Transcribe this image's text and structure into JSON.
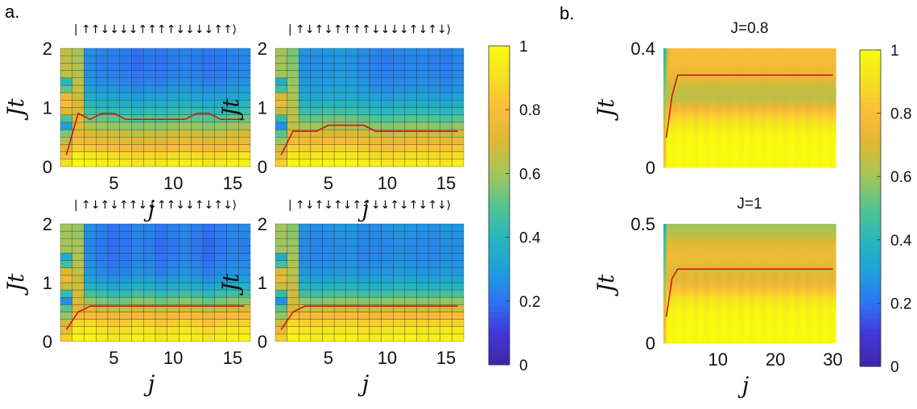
{
  "figure": {
    "panel_a_label": "a.",
    "panel_b_label": "b."
  },
  "colorscale": [
    "#3e26a8",
    "#4435d8",
    "#2e74f4",
    "#1fa0db",
    "#26b7bb",
    "#55c48e",
    "#a1c55c",
    "#dcb932",
    "#fbbb3a",
    "#f3df23",
    "#f9fb0e"
  ],
  "chart_data": [
    {
      "type": "heatmap",
      "panel": "a",
      "title": "| ↑↑↓↓↓↓↑↑↑↑↓↓↓↓↑↑⟩",
      "xlabel": "j",
      "ylabel": "Jt",
      "xlim": [
        0.5,
        16.5
      ],
      "ylim": [
        0,
        2
      ],
      "xticks": [
        5,
        10,
        15
      ],
      "yticks": [
        0,
        1,
        2
      ],
      "x_cells": 16,
      "y_cells": 16,
      "z_base": [
        1.0,
        0.95,
        0.85,
        0.78,
        0.72,
        0.64,
        0.56,
        0.48,
        0.42,
        0.37,
        0.33,
        0.3,
        0.28,
        0.27,
        0.27,
        0.28
      ],
      "z_dips": [
        0,
        0,
        0.02,
        0.04,
        0.05,
        0.06,
        0.08,
        0.06,
        0.07,
        0.05,
        0.04,
        0.05,
        0.07,
        0.06,
        0.04,
        0.03
      ],
      "column1_value": 0.55,
      "column2_value": 0.78,
      "red_line": {
        "x": [
          1,
          2,
          3,
          4,
          5,
          6,
          7,
          8,
          9,
          10,
          11,
          12,
          13,
          14,
          15,
          16
        ],
        "y": [
          0.2,
          0.9,
          0.8,
          0.9,
          0.9,
          0.8,
          0.8,
          0.8,
          0.8,
          0.8,
          0.8,
          0.9,
          0.9,
          0.8,
          0.8,
          0.8
        ]
      }
    },
    {
      "type": "heatmap",
      "panel": "a",
      "title": "| ↑↓↑↓↑↑↑↑↓↓↓↓↑↓↑↓⟩",
      "xlabel": "j",
      "ylabel": "Jt",
      "xlim": [
        0.5,
        16.5
      ],
      "ylim": [
        0,
        2
      ],
      "xticks": [
        5,
        10,
        15
      ],
      "yticks": [
        0,
        1,
        2
      ],
      "x_cells": 16,
      "y_cells": 16,
      "z_base": [
        1.0,
        0.95,
        0.88,
        0.8,
        0.72,
        0.63,
        0.55,
        0.47,
        0.41,
        0.36,
        0.33,
        0.31,
        0.3,
        0.29,
        0.29,
        0.3
      ],
      "z_dips": [
        0,
        0.02,
        0.03,
        0.03,
        0.02,
        0.01,
        0.02,
        0.04,
        0.06,
        0.07,
        0.06,
        0.05,
        0.05,
        0.06,
        0.07,
        0.05
      ],
      "column1_value": 0.5,
      "column2_value": 0.72,
      "red_line": {
        "x": [
          1,
          2,
          3,
          4,
          5,
          6,
          7,
          8,
          9,
          10,
          11,
          12,
          13,
          14,
          15,
          16
        ],
        "y": [
          0.2,
          0.6,
          0.6,
          0.6,
          0.7,
          0.7,
          0.7,
          0.7,
          0.6,
          0.6,
          0.6,
          0.6,
          0.6,
          0.6,
          0.6,
          0.6
        ]
      }
    },
    {
      "type": "heatmap",
      "panel": "a",
      "title": "| ↑↓↑↓↑↑↓↓↑↑↓↓↑↓↑↓⟩",
      "xlabel": "j",
      "ylabel": "Jt",
      "xlim": [
        0.5,
        16.5
      ],
      "ylim": [
        0,
        2
      ],
      "xticks": [
        5,
        10,
        15
      ],
      "yticks": [
        0,
        1,
        2
      ],
      "x_cells": 16,
      "y_cells": 16,
      "z_base": [
        1.0,
        0.96,
        0.9,
        0.82,
        0.72,
        0.6,
        0.49,
        0.4,
        0.34,
        0.3,
        0.28,
        0.27,
        0.26,
        0.26,
        0.27,
        0.28
      ],
      "z_dips": [
        0,
        0.02,
        0.02,
        0.05,
        0.07,
        0.06,
        0.03,
        0.04,
        0.07,
        0.05,
        0.03,
        0.05,
        0.08,
        0.05,
        0.03,
        0.03
      ],
      "column1_value": 0.5,
      "column2_value": 0.76,
      "red_line": {
        "x": [
          1,
          2,
          3,
          4,
          5,
          6,
          7,
          8,
          9,
          10,
          11,
          12,
          13,
          14,
          15,
          16
        ],
        "y": [
          0.2,
          0.5,
          0.6,
          0.6,
          0.6,
          0.6,
          0.6,
          0.6,
          0.6,
          0.6,
          0.6,
          0.6,
          0.6,
          0.6,
          0.6,
          0.6
        ]
      }
    },
    {
      "type": "heatmap",
      "panel": "a",
      "title": "| ↑↓↑↓↑↓↑↑↓↓↑↓↑↓↑↓⟩",
      "xlabel": "j",
      "ylabel": "Jt",
      "xlim": [
        0.5,
        16.5
      ],
      "ylim": [
        0,
        2
      ],
      "xticks": [
        5,
        10,
        15
      ],
      "yticks": [
        0,
        1,
        2
      ],
      "x_cells": 16,
      "y_cells": 16,
      "z_base": [
        1.0,
        0.96,
        0.9,
        0.82,
        0.72,
        0.61,
        0.5,
        0.42,
        0.36,
        0.32,
        0.3,
        0.29,
        0.29,
        0.29,
        0.3,
        0.31
      ],
      "z_dips": [
        0,
        0.02,
        0.04,
        0.05,
        0.04,
        0.03,
        0.03,
        0.05,
        0.05,
        0.04,
        0.03,
        0.03,
        0.04,
        0.04,
        0.03,
        0.03
      ],
      "column1_value": 0.5,
      "column2_value": 0.74,
      "red_line": {
        "x": [
          1,
          2,
          3,
          4,
          5,
          6,
          7,
          8,
          9,
          10,
          11,
          12,
          13,
          14,
          15,
          16
        ],
        "y": [
          0.2,
          0.5,
          0.6,
          0.6,
          0.6,
          0.6,
          0.6,
          0.6,
          0.6,
          0.6,
          0.6,
          0.6,
          0.6,
          0.6,
          0.6,
          0.6
        ]
      }
    },
    {
      "type": "heatmap",
      "panel": "b",
      "title": "J=0.8",
      "xlabel": "",
      "ylabel": "Jt",
      "xlim": [
        0.5,
        30.5
      ],
      "ylim": [
        0,
        0.4
      ],
      "xticks": [],
      "yticks": [
        0,
        0.4
      ],
      "x_cells": 60,
      "y_cells": 40,
      "z_rows": [
        {
          "y": 0.0,
          "v": 1.0
        },
        {
          "y": 0.1,
          "v": 0.99
        },
        {
          "y": 0.14,
          "v": 0.94
        },
        {
          "y": 0.17,
          "v": 0.87
        },
        {
          "y": 0.2,
          "v": 0.76
        },
        {
          "y": 0.23,
          "v": 0.65
        },
        {
          "y": 0.27,
          "v": 0.66
        },
        {
          "y": 0.31,
          "v": 0.74
        },
        {
          "y": 0.35,
          "v": 0.78
        },
        {
          "y": 0.4,
          "v": 0.8
        }
      ],
      "column1_value": 0.4,
      "red_line": {
        "x": [
          1,
          2,
          3,
          4,
          30
        ],
        "y": [
          0.1,
          0.24,
          0.31,
          0.31,
          0.31
        ]
      }
    },
    {
      "type": "heatmap",
      "panel": "b",
      "title": "J=1",
      "xlabel": "j",
      "ylabel": "Jt",
      "xlim": [
        0.5,
        30.5
      ],
      "ylim": [
        0,
        0.5
      ],
      "xticks": [
        10,
        20,
        30
      ],
      "yticks": [
        0,
        0.5
      ],
      "x_cells": 60,
      "y_cells": 40,
      "z_rows": [
        {
          "y": 0.0,
          "v": 1.0
        },
        {
          "y": 0.13,
          "v": 0.98
        },
        {
          "y": 0.18,
          "v": 0.92
        },
        {
          "y": 0.22,
          "v": 0.83
        },
        {
          "y": 0.26,
          "v": 0.72
        },
        {
          "y": 0.31,
          "v": 0.72
        },
        {
          "y": 0.36,
          "v": 0.76
        },
        {
          "y": 0.41,
          "v": 0.73
        },
        {
          "y": 0.45,
          "v": 0.65
        },
        {
          "y": 0.5,
          "v": 0.6
        }
      ],
      "column1_value": 0.38,
      "red_line": {
        "x": [
          1,
          2,
          3,
          4,
          30
        ],
        "y": [
          0.11,
          0.27,
          0.31,
          0.31,
          0.31
        ]
      }
    },
    {
      "type": "colorbar",
      "panel": "a",
      "range": [
        0,
        1
      ],
      "ticks": [
        "0",
        "0.2",
        "0.4",
        "0.6",
        "0.8",
        "1"
      ]
    },
    {
      "type": "colorbar",
      "panel": "b",
      "range": [
        0,
        1
      ],
      "ticks": [
        "0",
        "0.2",
        "0.4",
        "0.6",
        "0.8",
        "1"
      ]
    }
  ]
}
